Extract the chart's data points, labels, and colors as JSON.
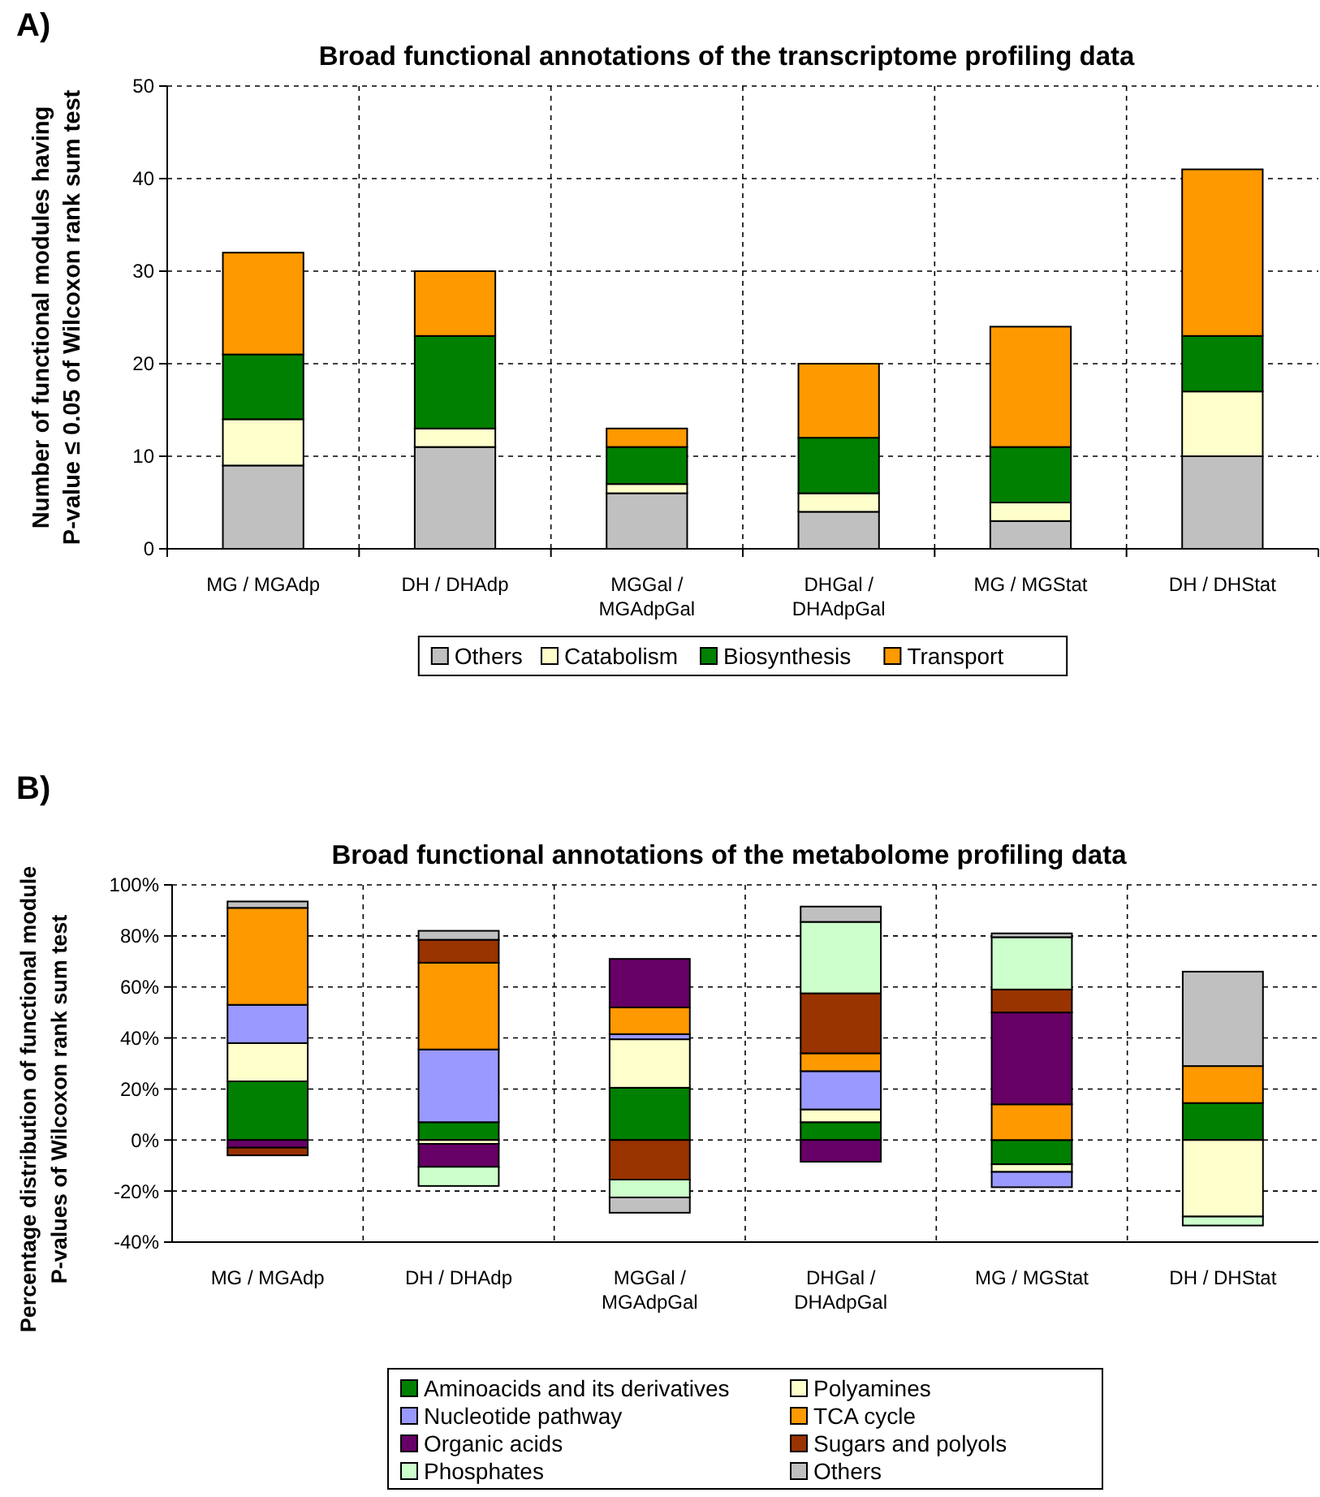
{
  "chart_data": [
    {
      "type": "bar",
      "stacked": true,
      "title": "Broad functional annotations of the transcriptome profiling data",
      "ylabel": "Number of functional modules having\nP-value ≤ 0.05 of Wilcoxon rank sum test",
      "annotations": [
        "A)"
      ],
      "categories": [
        "MG / MGAdp",
        "DH / DHAdp",
        "MGGal / MGAdpGal",
        "DHGal / DHAdpGal",
        "MG / MGStat",
        "DH / DHStat"
      ],
      "ylim": [
        0,
        50
      ],
      "yticks": [
        0,
        10,
        20,
        30,
        40,
        50
      ],
      "grid": true,
      "legend": "bottom",
      "series": [
        {
          "name": "Others",
          "color": "#c0c0c0",
          "values": [
            9,
            11,
            6,
            4,
            3,
            10
          ]
        },
        {
          "name": "Catabolism",
          "color": "#ffffcc",
          "values": [
            5,
            2,
            1,
            2,
            2,
            7
          ]
        },
        {
          "name": "Biosynthesis",
          "color": "#008000",
          "values": [
            7,
            10,
            4,
            6,
            6,
            6
          ]
        },
        {
          "name": "Transport",
          "color": "#ff9900",
          "values": [
            11,
            7,
            2,
            8,
            13,
            18
          ]
        }
      ]
    },
    {
      "type": "bar",
      "stacked": true,
      "title": "Broad functional annotations of the metabolome profiling data",
      "ylabel": "Percentage distribution of functional module\nP-values of Wilcoxon rank sum test",
      "annotations": [
        "B)"
      ],
      "categories": [
        "MG / MGAdp",
        "DH / DHAdp",
        "MGGal / MGAdpGal",
        "DHGal / DHAdpGal",
        "MG / MGStat",
        "DH / DHStat"
      ],
      "ylim": [
        -40,
        100
      ],
      "yticks": [
        {
          "value": -40,
          "label": "-40%"
        },
        {
          "value": -20,
          "label": "-20%"
        },
        {
          "value": 0,
          "label": "0%"
        },
        {
          "value": 20,
          "label": "20%"
        },
        {
          "value": 40,
          "label": "40%"
        },
        {
          "value": 60,
          "label": "60%"
        },
        {
          "value": 80,
          "label": "80%"
        },
        {
          "value": 100,
          "label": "100%"
        }
      ],
      "grid": true,
      "legend": "bottom",
      "series": [
        {
          "name": "Aminoacids and its derivatives",
          "color": "#008000",
          "values": [
            23,
            7,
            20.5,
            7,
            -9.5,
            14.5
          ]
        },
        {
          "name": "Polyamines",
          "color": "#ffffcc",
          "values": [
            15,
            -1.5,
            19,
            5,
            -3,
            -30
          ]
        },
        {
          "name": "Nucleotide pathway",
          "color": "#9999ff",
          "values": [
            15,
            28.5,
            2,
            15,
            -6,
            null
          ]
        },
        {
          "name": "TCA cycle",
          "color": "#ff9900",
          "values": [
            38,
            34,
            10.5,
            7,
            14,
            14.5
          ]
        },
        {
          "name": "Organic acids",
          "color": "#660066",
          "values": [
            -3,
            -9,
            19,
            -8.5,
            36,
            null
          ]
        },
        {
          "name": "Sugars and polyols",
          "color": "#993300",
          "values": [
            -3,
            9,
            -15.5,
            23.5,
            9,
            null
          ]
        },
        {
          "name": "Phosphates",
          "color": "#ccffcc",
          "values": [
            null,
            -7.5,
            -7,
            28,
            20.5,
            -3.5
          ]
        },
        {
          "name": "Others",
          "color": "#c0c0c0",
          "values": [
            2.5,
            3.5,
            -6,
            6,
            1.5,
            37
          ]
        }
      ]
    }
  ]
}
